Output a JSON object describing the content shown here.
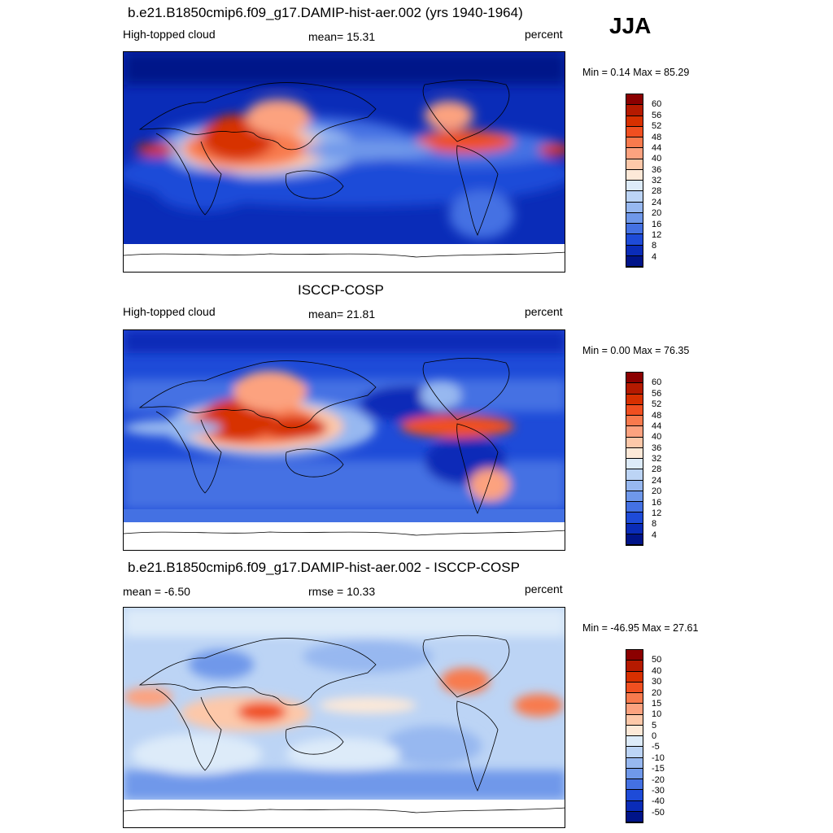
{
  "season": "JJA",
  "panels": [
    {
      "title": "b.e21.B1850cmip6.f09_g17.DAMIP-hist-aer.002 (yrs 1940-1964)",
      "left_label": "High-topped cloud",
      "center_label": "mean=  15.31",
      "right_label": "percent",
      "minmax": "Min =   0.14 Max =  85.29",
      "colorbar": {
        "labels": [
          "60",
          "56",
          "52",
          "48",
          "44",
          "40",
          "36",
          "32",
          "28",
          "24",
          "20",
          "16",
          "12",
          "8",
          "4"
        ],
        "colors": [
          "#8b0000",
          "#b51a00",
          "#d73000",
          "#f04f20",
          "#f87a4d",
          "#fca27f",
          "#fdc8a9",
          "#fde9d8",
          "#ddebf9",
          "#bcd4f5",
          "#97b8f0",
          "#6f98ea",
          "#4471e3",
          "#1e4bd8",
          "#0a2cb8",
          "#001489"
        ]
      }
    },
    {
      "title": "ISCCP-COSP",
      "left_label": "High-topped cloud",
      "center_label": "mean=  21.81",
      "right_label": "percent",
      "minmax": "Min =   0.00 Max =  76.35",
      "colorbar": {
        "labels": [
          "60",
          "56",
          "52",
          "48",
          "44",
          "40",
          "36",
          "32",
          "28",
          "24",
          "20",
          "16",
          "12",
          "8",
          "4"
        ],
        "colors": [
          "#8b0000",
          "#b51a00",
          "#d73000",
          "#f04f20",
          "#f87a4d",
          "#fca27f",
          "#fdc8a9",
          "#fde9d8",
          "#ddebf9",
          "#bcd4f5",
          "#97b8f0",
          "#6f98ea",
          "#4471e3",
          "#1e4bd8",
          "#0a2cb8",
          "#001489"
        ]
      }
    },
    {
      "title": "b.e21.B1850cmip6.f09_g17.DAMIP-hist-aer.002 - ISCCP-COSP",
      "left_label": "mean =  -6.50",
      "center_label": "rmse =  10.33",
      "right_label": "percent",
      "minmax": "Min = -46.95 Max =  27.61",
      "colorbar": {
        "labels": [
          "50",
          "40",
          "30",
          "20",
          "15",
          "10",
          "5",
          "0",
          "-5",
          "-10",
          "-15",
          "-20",
          "-30",
          "-40",
          "-50"
        ],
        "colors": [
          "#8b0000",
          "#b51a00",
          "#d73000",
          "#f04f20",
          "#f87a4d",
          "#fca27f",
          "#fdc8a9",
          "#fde9d8",
          "#ddebf9",
          "#bcd4f5",
          "#97b8f0",
          "#6f98ea",
          "#4471e3",
          "#1e4bd8",
          "#0a2cb8",
          "#001489"
        ]
      }
    }
  ]
}
